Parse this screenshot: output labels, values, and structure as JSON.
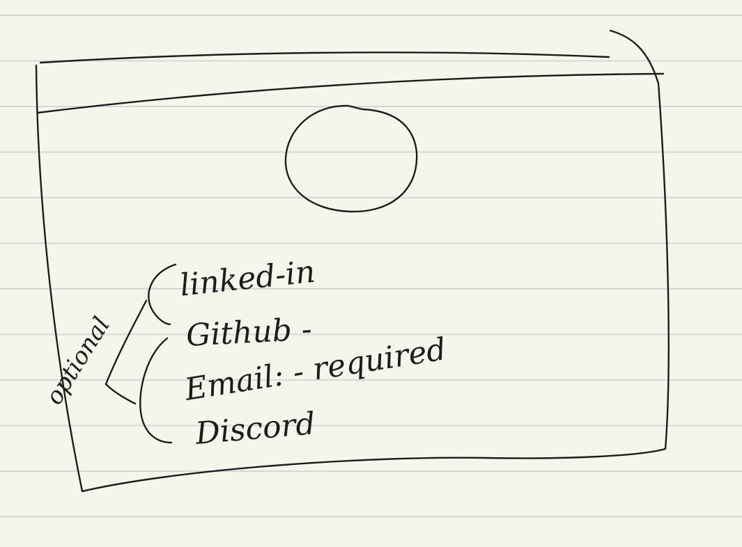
{
  "paper": {
    "background_color": "#f6f5ec",
    "rule_color": "#d6d6d6",
    "ink_color": "#1c1c1c"
  },
  "sketch": {
    "profile_picture_shape": "circle",
    "fields": [
      {
        "text": "linked-in"
      },
      {
        "text": "Github -"
      },
      {
        "text": "Email: - required"
      },
      {
        "text": "Discord"
      }
    ],
    "side_note": "optional"
  }
}
